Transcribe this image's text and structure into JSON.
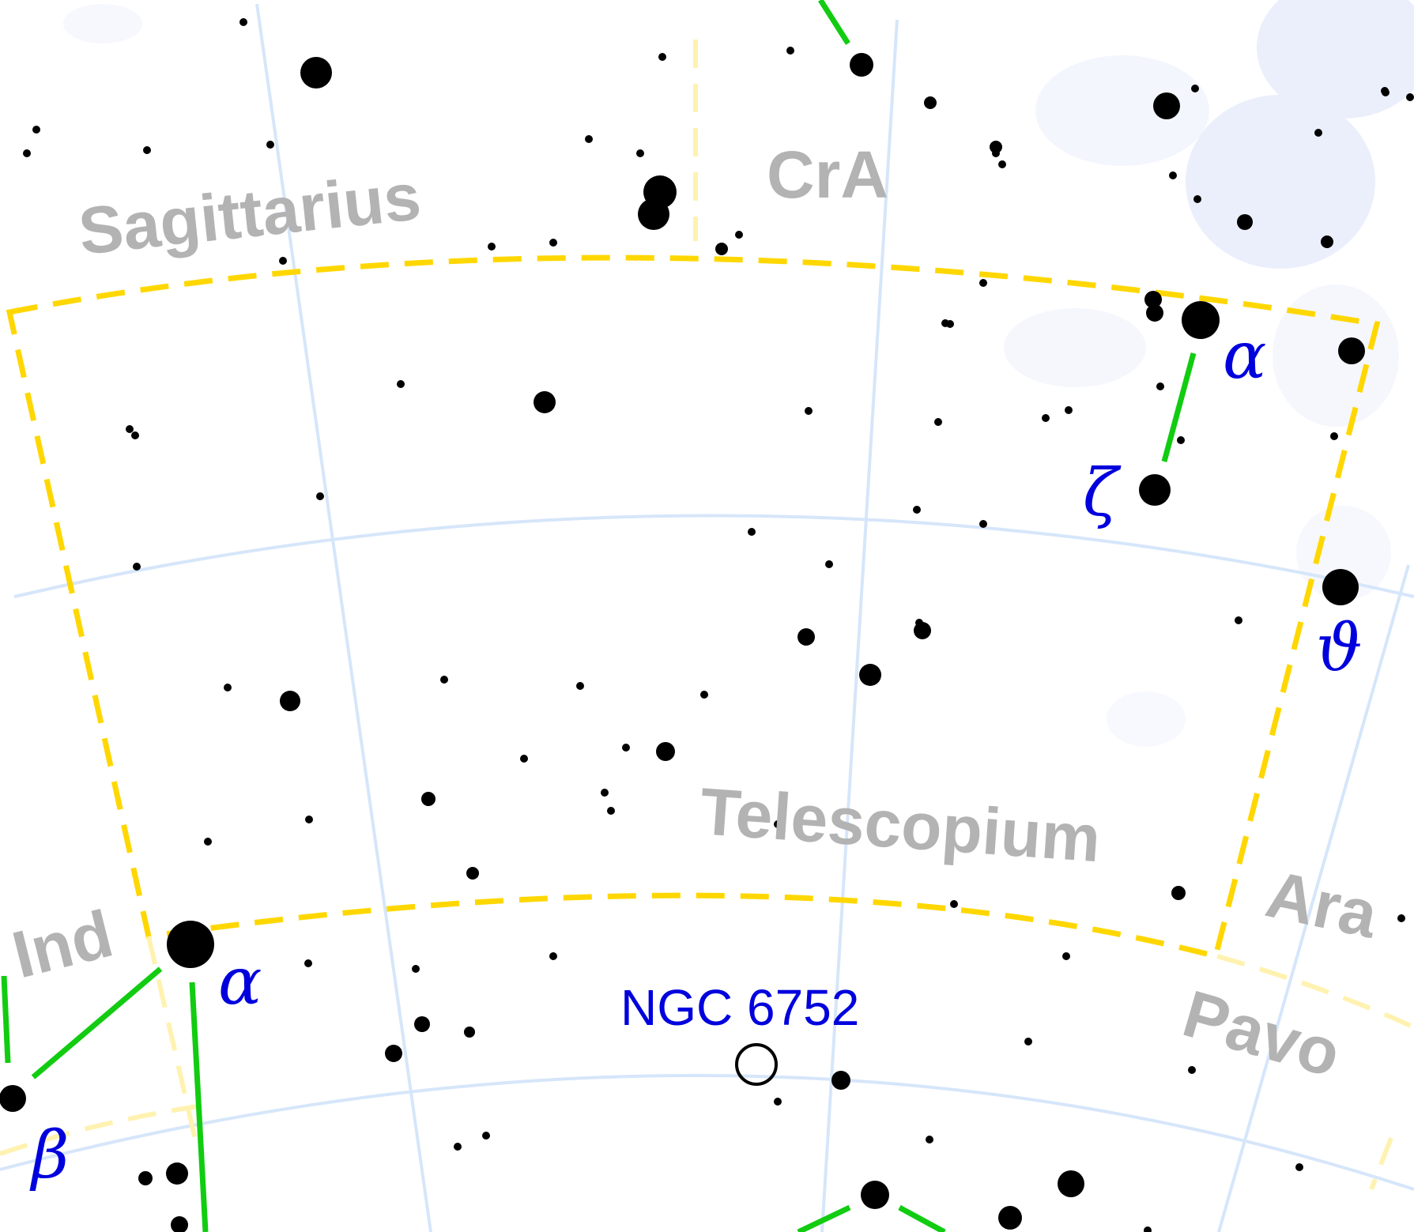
{
  "title": "",
  "constellations": {
    "main": "Telescopium",
    "neighbors": [
      "Sagittarius",
      "CrA",
      "Ind",
      "Ara",
      "Pavo"
    ]
  },
  "star_labels": {
    "alpha_tel": "α",
    "zeta_tel": "ζ",
    "theta_tel": "ϑ",
    "alpha_ind": "α",
    "beta_ind": "β"
  },
  "deep_sky_objects": [
    {
      "name": "NGC 6752",
      "type": "globular-cluster"
    }
  ],
  "colors": {
    "background": "#ffffff",
    "grid": "#d6e6fa",
    "boundary": "#ffd700",
    "boundary_faint": "#fff2b0",
    "stick_figure": "#11cc11",
    "constellation_label": "#b3b3b3",
    "greek_label": "#0000dd",
    "milky_way": "#e8ecfb"
  }
}
